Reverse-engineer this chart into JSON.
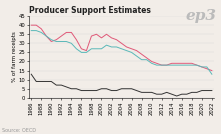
{
  "title": "Producer Support Estimates",
  "ylabel": "% of farm receipts",
  "source": "Source: OECD",
  "watermark": "ep3",
  "years": [
    1986,
    1987,
    1988,
    1989,
    1990,
    1991,
    1992,
    1993,
    1994,
    1995,
    1996,
    1997,
    1998,
    1999,
    2000,
    2001,
    2002,
    2003,
    2004,
    2005,
    2006,
    2007,
    2008,
    2009,
    2010,
    2011,
    2012,
    2013,
    2014,
    2015,
    2016,
    2017,
    2018,
    2019,
    2020,
    2021,
    2022
  ],
  "australia": [
    13,
    9,
    9,
    9,
    9,
    7,
    7,
    6,
    5,
    5,
    4,
    4,
    4,
    4,
    5,
    5,
    4,
    4,
    5,
    5,
    5,
    4,
    3,
    3,
    3,
    2,
    2,
    3,
    2,
    1,
    2,
    2,
    3,
    3,
    4,
    4,
    4
  ],
  "eu": [
    40,
    40,
    38,
    34,
    31,
    32,
    34,
    36,
    36,
    32,
    27,
    26,
    34,
    35,
    33,
    35,
    33,
    32,
    30,
    28,
    27,
    26,
    24,
    22,
    20,
    19,
    18,
    18,
    19,
    19,
    19,
    19,
    19,
    18,
    17,
    16,
    15
  ],
  "oecd": [
    37,
    37,
    36,
    34,
    32,
    31,
    31,
    31,
    30,
    27,
    25,
    25,
    27,
    27,
    27,
    29,
    28,
    28,
    27,
    26,
    25,
    23,
    21,
    21,
    19,
    18,
    18,
    18,
    18,
    18,
    18,
    18,
    18,
    18,
    17,
    17,
    13
  ],
  "australia_color": "#333333",
  "eu_color": "#e05878",
  "oecd_color": "#5ab8b8",
  "ylim": [
    0,
    45
  ],
  "yticks": [
    0,
    5,
    10,
    15,
    20,
    25,
    30,
    35,
    40,
    45
  ],
  "bg_color": "#f2ede8",
  "title_fontsize": 5.5,
  "label_fontsize": 4.0,
  "tick_fontsize": 3.8,
  "legend_fontsize": 4.0,
  "source_fontsize": 3.5,
  "watermark_fontsize": 11,
  "linewidth": 0.7
}
